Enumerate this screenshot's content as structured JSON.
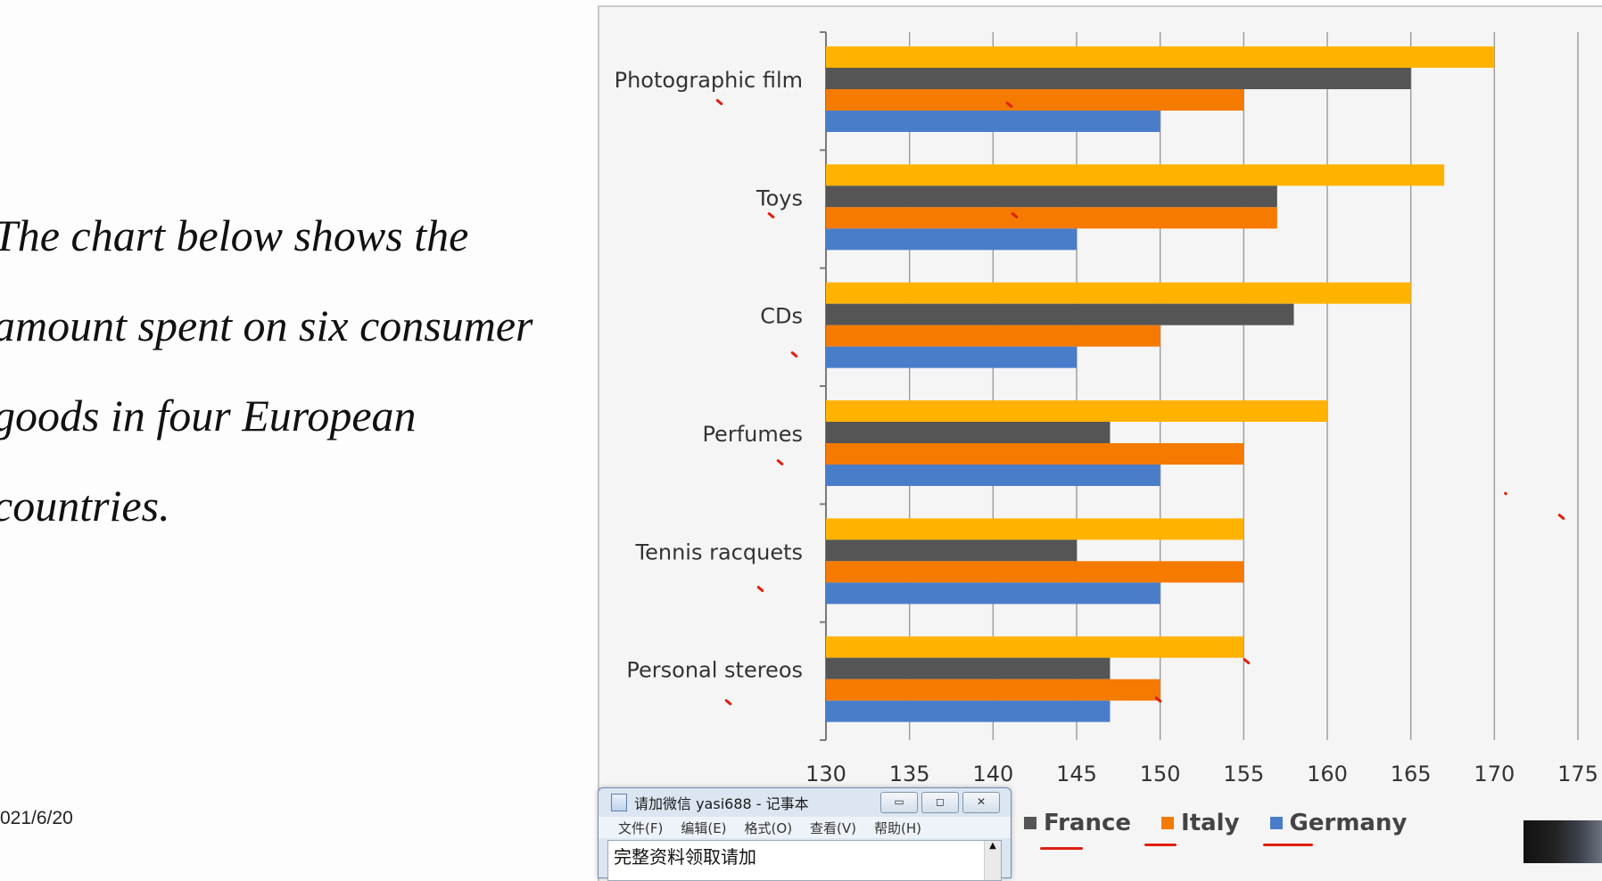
{
  "slide": {
    "lines": [
      "The chart below shows the",
      "amount spent on six consumer",
      "goods in four European",
      "countries."
    ],
    "date": "021/6/20"
  },
  "chart_data": {
    "type": "bar",
    "orientation": "horizontal",
    "categories": [
      "Photographic film",
      "Toys",
      "CDs",
      "Perfumes",
      "Tennis racquets",
      "Personal stereos"
    ],
    "series": [
      {
        "name": "",
        "color": "#ffb300",
        "values": [
          170,
          167,
          165,
          160,
          155,
          155
        ]
      },
      {
        "name": "France",
        "color": "#555555",
        "values": [
          165,
          157,
          158,
          147,
          145,
          147
        ]
      },
      {
        "name": "Italy",
        "color": "#f57a00",
        "values": [
          155,
          157,
          150,
          155,
          155,
          150
        ]
      },
      {
        "name": "Germany",
        "color": "#4a7dc9",
        "values": [
          150,
          145,
          145,
          150,
          150,
          147
        ]
      }
    ],
    "xlim": [
      130,
      175
    ],
    "xticks": [
      "130",
      "135",
      "140",
      "145",
      "150",
      "155",
      "160",
      "165",
      "170",
      "175"
    ],
    "grid": true,
    "legend_position": "bottom"
  },
  "legend": {
    "items": [
      {
        "label": "France",
        "color": "#555555"
      },
      {
        "label": "Italy",
        "color": "#f57a00"
      },
      {
        "label": "Germany",
        "color": "#4a7dc9"
      }
    ]
  },
  "notepad": {
    "title": "请加微信 yasi688 - 记事本",
    "menus": [
      "文件(F)",
      "编辑(E)",
      "格式(O)",
      "查看(V)",
      "帮助(H)"
    ],
    "content": "完整资料领取请加",
    "minimize_icon": "minimize-icon",
    "maximize_icon": "maximize-icon",
    "close_icon": "close-icon"
  }
}
